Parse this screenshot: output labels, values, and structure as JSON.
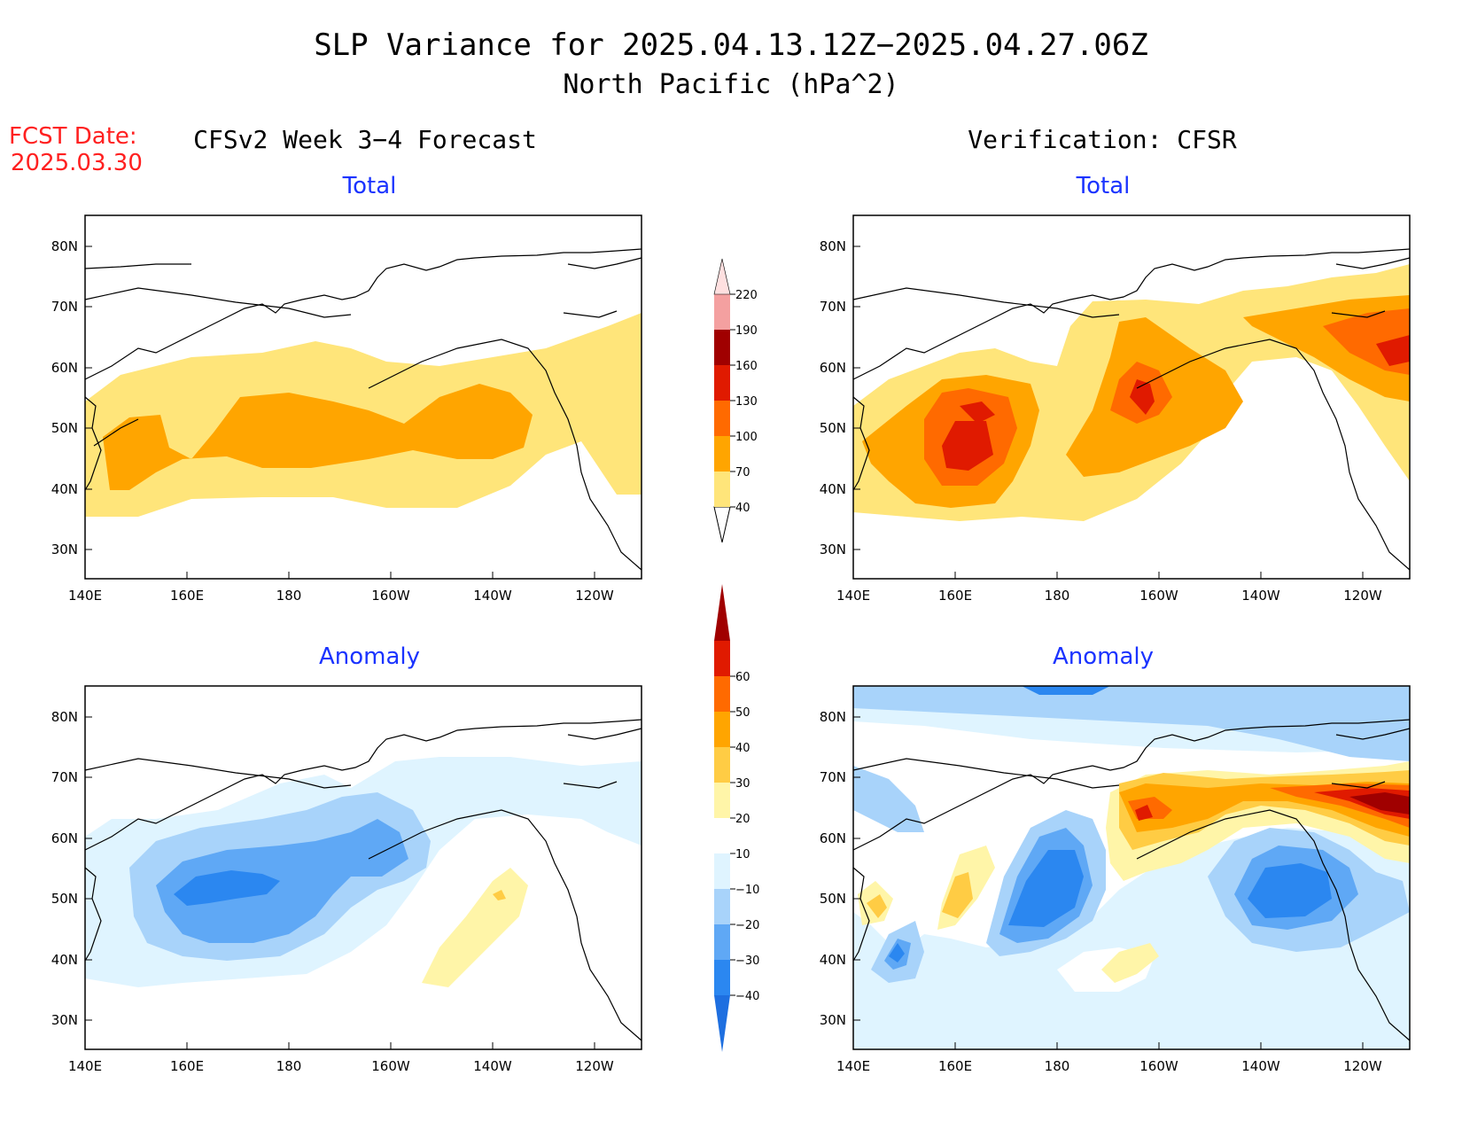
{
  "title": {
    "line1": "SLP Variance for 2025.04.13.12Z−2025.04.27.06Z",
    "line2": "North Pacific (hPa^2)"
  },
  "fcst": {
    "label": "FCST Date:",
    "date": "2025.03.30"
  },
  "columns": {
    "left": "CFSv2 Week 3−4 Forecast",
    "right": "Verification: CFSR"
  },
  "panels": [
    {
      "id": "fcst-total",
      "subtitle": "Total"
    },
    {
      "id": "verif-total",
      "subtitle": "Total"
    },
    {
      "id": "fcst-anom",
      "subtitle": "Anomaly"
    },
    {
      "id": "verif-anom",
      "subtitle": "Anomaly"
    }
  ],
  "axes": {
    "lon_ticks": [
      "140E",
      "160E",
      "180",
      "160W",
      "140W",
      "120W"
    ],
    "lat_ticks": [
      "80N",
      "70N",
      "60N",
      "50N",
      "40N",
      "30N"
    ]
  },
  "colorbars": {
    "total": {
      "labels": [
        "40",
        "70",
        "100",
        "130",
        "160",
        "190",
        "220"
      ],
      "colors": [
        "#ffe57a",
        "#ffa500",
        "#ff6a00",
        "#e01a00",
        "#a00000",
        "#f4a0a0",
        "#ffe0e0"
      ]
    },
    "anomaly": {
      "labels": [
        "−40",
        "−30",
        "−20",
        "−10",
        "10",
        "20",
        "30",
        "40",
        "50",
        "60"
      ],
      "colors": [
        "#1e6fe0",
        "#2b87f0",
        "#5fa8f5",
        "#a8d3fa",
        "#dff4ff",
        "#ffffff",
        "#fff5a8",
        "#ffcc44",
        "#ffa500",
        "#ff6a00",
        "#e01a00",
        "#a00000"
      ]
    }
  },
  "colors": {
    "total_40": "#ffe57a",
    "total_70": "#ffa500",
    "total_100": "#ff6a00",
    "total_130": "#e01a00",
    "total_160": "#a00000",
    "neg_10": "#dff4ff",
    "neg_20": "#a8d3fa",
    "neg_30": "#5fa8f5",
    "neg_40": "#2b87f0",
    "pos_10": "#fff5a8",
    "pos_20": "#ffcc44",
    "pos_30": "#ffa500",
    "pos_40": "#ff6a00",
    "pos_50": "#e01a00",
    "pos_60": "#a00000"
  }
}
